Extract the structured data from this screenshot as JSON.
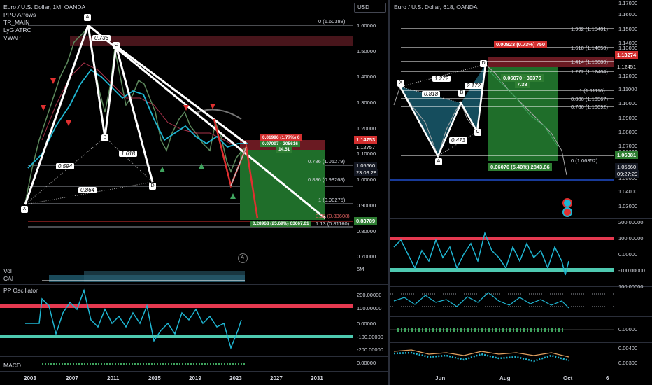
{
  "left_chart": {
    "title": "Euro / U.S. Dollar, 1M, OANDA",
    "indicators": [
      "PPO Arrows",
      "TR_MAIN",
      "LyG ATRC",
      "VWAP"
    ],
    "currency_button": "USD",
    "price_axis": [
      "1.60000",
      "1.50000",
      "1.40000",
      "1.30000",
      "1.20000",
      "1.10000",
      "1.00000",
      "0.90000",
      "0.80000",
      "0.70000"
    ],
    "price_tags": {
      "red": "1.14753",
      "grey": "1.12757",
      "current": "1.05660",
      "countdown": "23:09:28",
      "green": "0.83789"
    },
    "fib_levels": [
      "0 (1.60388)",
      "0.786 (1.05279)",
      "0.886 (0.98268)",
      "1 (0.90275)",
      "0.96 (0.83608)",
      "1.13 (0.81160)"
    ],
    "pattern_points": [
      "X",
      "A",
      "B",
      "C",
      "D"
    ],
    "ratios": [
      "0.736",
      "1.618",
      "0.594",
      "0.864"
    ],
    "position_labels": {
      "stop": "0.01996 (1.77%) 0",
      "entry": "0.07097 · 205616",
      "entry2": "14.51",
      "target": "0.28968 (25.69%) 63667.01"
    },
    "x_axis": [
      "2003",
      "2007",
      "2011",
      "2015",
      "2019",
      "2023",
      "2027",
      "2031"
    ],
    "volume_pane": {
      "labels": [
        "Vol",
        "CAI"
      ],
      "axis": "5M"
    },
    "pp_pane": {
      "label": "PP Oscillator",
      "axis": [
        "200.00000",
        "100.00000",
        "0.00000",
        "-100.00000",
        "-200.00000"
      ]
    },
    "macd_pane": {
      "label": "MACD",
      "axis": "0.00000"
    }
  },
  "right_chart": {
    "title": "Euro / U.S. Dollar, 618, OANDA",
    "price_axis": [
      "1.17000",
      "1.16000",
      "1.15000",
      "1.14000",
      "1.13000",
      "1.12000",
      "1.11000",
      "1.10000",
      "1.09000",
      "1.08000",
      "1.07000",
      "1.06000",
      "1.05000",
      "1.04000",
      "1.03000"
    ],
    "price_tags": {
      "red": "1.13274",
      "grey": "1.12451",
      "green": "1.06381",
      "current": "1.05660",
      "countdown": "09:27:29"
    },
    "fib_levels": [
      "1.902 (1.15401)",
      "1.618 (1.14050)",
      "1.414 (1.13080)",
      "1.272 (1.12404)",
      "1 (1.11110)",
      "0.886 (1.10567)",
      "0.786 (1.10092)",
      "0 (1.06352)"
    ],
    "stop_label": "0.00823 (0.73%) 750",
    "entry_label": "0.06070 · 30376",
    "entry_label2": "7.38",
    "target_label": "0.06070 (5.40%) 2843.86",
    "pattern_points": [
      "X",
      "A",
      "B",
      "C",
      "D"
    ],
    "ratios": [
      "1.272",
      "0.818",
      "2.172",
      "0.473"
    ],
    "osc1_axis": [
      "200.00000",
      "100.00000",
      "0.00000",
      "-100.00000"
    ],
    "osc2_axis": [
      "100.00000"
    ],
    "osc3_axis": [
      "0.00000"
    ],
    "osc4_axis": [
      "0.00400",
      "0.00300"
    ],
    "x_axis": [
      "Jun",
      "Aug",
      "Oct",
      "6"
    ]
  }
}
